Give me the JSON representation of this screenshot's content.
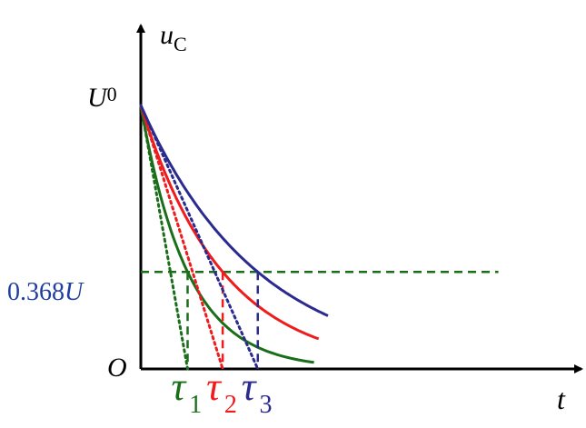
{
  "chart_data": {
    "type": "line",
    "title": "",
    "ylabel": {
      "main": "u",
      "sub": "C"
    },
    "xlabel": "t",
    "origin_label": "O",
    "y_start_label": {
      "main": "U",
      "sub": "0"
    },
    "threshold_label": {
      "text": "0.368",
      "var": "U"
    },
    "U0": 1,
    "threshold": 0.368,
    "xlim": [
      0,
      7.6
    ],
    "ylim": [
      0,
      1.05
    ],
    "series": [
      {
        "label_main": "τ",
        "label_sub": "1",
        "tau": 1.0,
        "x_end": 3.7,
        "color": "#1a6e1a"
      },
      {
        "label_main": "τ",
        "label_sub": "2",
        "tau": 1.75,
        "x_end": 3.8,
        "color": "#ee1c1c"
      },
      {
        "label_main": "τ",
        "label_sub": "3",
        "tau": 2.5,
        "x_end": 4.0,
        "color": "#2b2b8f"
      }
    ],
    "tangents_dotted": true,
    "threshold_line_color": "#1a6e1a",
    "threshold_label_color": "#1f3fa0"
  }
}
